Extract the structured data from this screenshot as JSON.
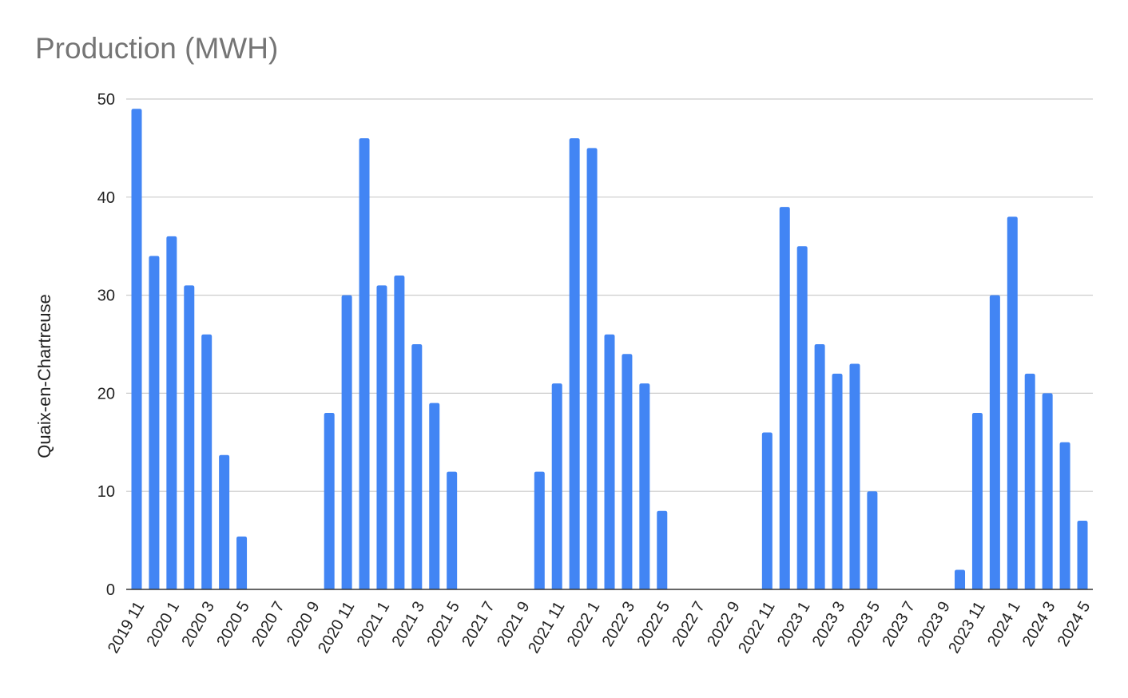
{
  "chart_data": {
    "type": "bar",
    "title": "Production (MWH)",
    "xlabel": "",
    "ylabel": "Quaix-en-Chartreuse",
    "ylim": [
      0,
      50
    ],
    "yticks": [
      0,
      10,
      20,
      30,
      40,
      50
    ],
    "grid": true,
    "legend": "none",
    "bar_color": "#4285f4",
    "categories": [
      "2019 11",
      "2019 12",
      "2020 1",
      "2020 2",
      "2020 3",
      "2020 4",
      "2020 5",
      "2020 6",
      "2020 7",
      "2020 8",
      "2020 9",
      "2020 10",
      "2020 11",
      "2020 12",
      "2021 1",
      "2021 2",
      "2021 3",
      "2021 4",
      "2021 5",
      "2021 6",
      "2021 7",
      "2021 8",
      "2021 9",
      "2021 10",
      "2021 11",
      "2021 12",
      "2022 1",
      "2022 2",
      "2022 3",
      "2022 4",
      "2022 5",
      "2022 6",
      "2022 7",
      "2022 8",
      "2022 9",
      "2022 10",
      "2022 11",
      "2022 12",
      "2023 1",
      "2023 2",
      "2023 3",
      "2023 4",
      "2023 5",
      "2023 6",
      "2023 7",
      "2023 8",
      "2023 9",
      "2023 10",
      "2023 11",
      "2023 12",
      "2024 1",
      "2024 2",
      "2024 3",
      "2024 4",
      "2024 5"
    ],
    "values": [
      49,
      34,
      36,
      31,
      26,
      13.7,
      5.4,
      0,
      0,
      0,
      0,
      18,
      30,
      46,
      31,
      32,
      25,
      19,
      12,
      0,
      0,
      0,
      0,
      12,
      21,
      46,
      45,
      26,
      24,
      21,
      8,
      0,
      0,
      0,
      0,
      0,
      16,
      39,
      35,
      25,
      22,
      23,
      10,
      0,
      0,
      0,
      0,
      2,
      18,
      30,
      38,
      22,
      20,
      15,
      7
    ]
  }
}
